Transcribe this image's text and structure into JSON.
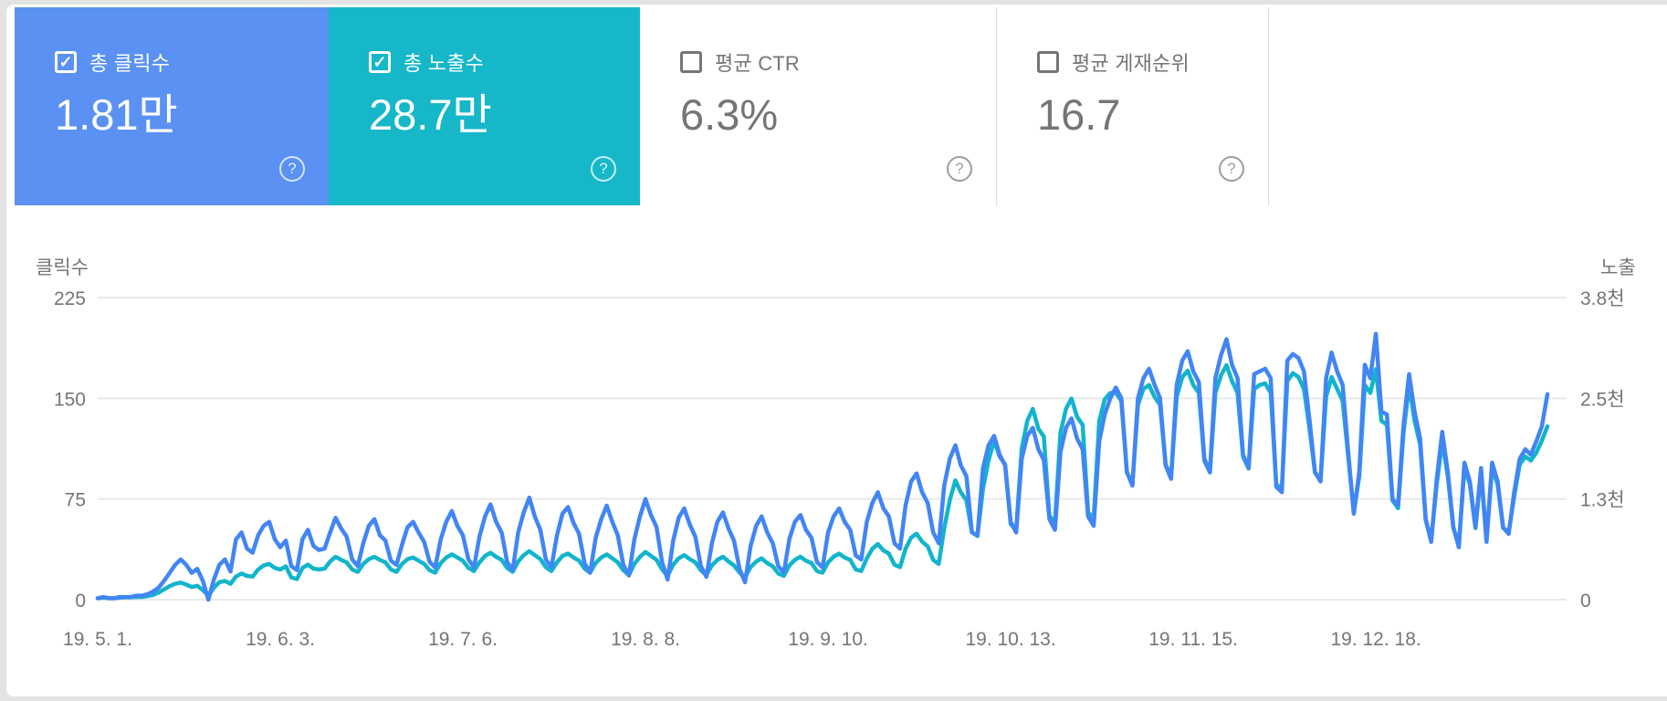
{
  "cards": [
    {
      "label": "총 클릭수",
      "value": "1.81만",
      "checked": true,
      "bg": "#5a91f2",
      "text": "#ffffff"
    },
    {
      "label": "총 노출수",
      "value": "28.7만",
      "checked": true,
      "bg": "#16b7c9",
      "text": "#ffffff"
    },
    {
      "label": "평균 CTR",
      "value": "6.3%",
      "checked": false,
      "bg": "#ffffff",
      "text": "#757575"
    },
    {
      "label": "평균 게재순위",
      "value": "16.7",
      "checked": false,
      "bg": "#ffffff",
      "text": "#757575"
    }
  ],
  "help_icon": "?",
  "chart_data": {
    "type": "line",
    "grid": true,
    "legend": "none",
    "left_axis": {
      "label": "클릭수",
      "max": 225,
      "ticks": [
        0,
        75,
        150,
        225
      ]
    },
    "right_axis": {
      "label": "노출",
      "max": 3800,
      "ticks": [
        "0",
        "1.3천",
        "2.5천",
        "3.8천"
      ],
      "tick_values": [
        0,
        1267,
        2533,
        3800
      ]
    },
    "x_tick_labels": [
      "19. 5. 1.",
      "19. 6. 3.",
      "19. 7. 6.",
      "19. 8. 8.",
      "19. 9. 10.",
      "19. 10. 13.",
      "19. 11. 15.",
      "19. 12. 18."
    ],
    "x_tick_day_indices": [
      0,
      33,
      66,
      99,
      132,
      165,
      198,
      231
    ],
    "series": [
      {
        "name": "클릭수",
        "axis": "left",
        "color": "#4285f4",
        "values": [
          1,
          2,
          1,
          1,
          2,
          2,
          2,
          3,
          3,
          4,
          6,
          9,
          14,
          20,
          26,
          30,
          26,
          20,
          23,
          14,
          0,
          15,
          26,
          30,
          21,
          45,
          50,
          38,
          35,
          48,
          55,
          58,
          45,
          39,
          44,
          25,
          22,
          45,
          52,
          40,
          37,
          38,
          50,
          61,
          53,
          47,
          30,
          25,
          42,
          55,
          60,
          48,
          44,
          29,
          26,
          41,
          54,
          58,
          50,
          43,
          28,
          24,
          45,
          58,
          66,
          55,
          48,
          30,
          24,
          47,
          62,
          71,
          58,
          50,
          28,
          22,
          50,
          65,
          76,
          62,
          52,
          30,
          24,
          48,
          64,
          69,
          57,
          49,
          27,
          20,
          46,
          60,
          70,
          58,
          48,
          26,
          18,
          45,
          62,
          75,
          63,
          54,
          28,
          15,
          44,
          61,
          68,
          56,
          47,
          25,
          17,
          42,
          58,
          65,
          53,
          44,
          23,
          13,
          40,
          55,
          62,
          50,
          42,
          25,
          20,
          45,
          58,
          63,
          52,
          46,
          28,
          24,
          50,
          62,
          68,
          58,
          52,
          33,
          30,
          58,
          72,
          80,
          68,
          62,
          42,
          38,
          70,
          88,
          94,
          80,
          72,
          50,
          42,
          85,
          105,
          115,
          100,
          92,
          50,
          48,
          98,
          115,
          122,
          108,
          100,
          58,
          50,
          105,
          122,
          128,
          112,
          104,
          60,
          52,
          110,
          128,
          135,
          120,
          112,
          62,
          55,
          118,
          138,
          150,
          158,
          150,
          95,
          85,
          150,
          165,
          172,
          160,
          150,
          100,
          90,
          160,
          178,
          185,
          170,
          162,
          105,
          95,
          165,
          182,
          194,
          175,
          165,
          108,
          98,
          168,
          170,
          172,
          165,
          84,
          80,
          178,
          183,
          180,
          170,
          134,
          95,
          88,
          165,
          184,
          170,
          160,
          110,
          64,
          95,
          175,
          165,
          198,
          140,
          138,
          75,
          70,
          130,
          168,
          140,
          120,
          60,
          43,
          90,
          125,
          95,
          54,
          39,
          102,
          88,
          54,
          98,
          43,
          102,
          88,
          54,
          49,
          80,
          105,
          112,
          108,
          118,
          129,
          153
        ]
      },
      {
        "name": "노출수",
        "axis": "right",
        "color": "#12b5cb",
        "values": [
          20,
          25,
          20,
          20,
          25,
          30,
          30,
          35,
          35,
          45,
          60,
          90,
          130,
          170,
          200,
          215,
          190,
          160,
          175,
          120,
          50,
          150,
          220,
          235,
          200,
          290,
          330,
          300,
          290,
          380,
          430,
          450,
          400,
          380,
          420,
          280,
          260,
          400,
          440,
          390,
          380,
          390,
          480,
          540,
          500,
          470,
          380,
          350,
          450,
          510,
          540,
          500,
          470,
          380,
          350,
          450,
          510,
          530,
          490,
          450,
          370,
          340,
          460,
          530,
          570,
          530,
          490,
          400,
          360,
          470,
          550,
          590,
          540,
          500,
          400,
          350,
          480,
          560,
          610,
          560,
          510,
          410,
          360,
          470,
          550,
          580,
          530,
          490,
          390,
          340,
          460,
          530,
          570,
          520,
          470,
          370,
          310,
          450,
          540,
          600,
          550,
          500,
          380,
          300,
          440,
          520,
          560,
          510,
          470,
          370,
          310,
          430,
          500,
          540,
          480,
          430,
          340,
          280,
          410,
          480,
          520,
          460,
          420,
          330,
          300,
          430,
          500,
          540,
          490,
          460,
          360,
          340,
          470,
          540,
          580,
          530,
          500,
          380,
          360,
          520,
          640,
          700,
          620,
          580,
          440,
          410,
          640,
          780,
          830,
          730,
          670,
          500,
          450,
          900,
          1250,
          1500,
          1350,
          1250,
          850,
          800,
          1400,
          1750,
          2000,
          1800,
          1700,
          950,
          880,
          1900,
          2250,
          2400,
          2150,
          2050,
          1050,
          980,
          2100,
          2400,
          2530,
          2300,
          2200,
          1100,
          1020,
          2250,
          2520,
          2600,
          2600,
          2500,
          1600,
          1450,
          2450,
          2650,
          2700,
          2550,
          2450,
          1700,
          1550,
          2550,
          2800,
          2880,
          2700,
          2600,
          1750,
          1600,
          2600,
          2820,
          2950,
          2750,
          2600,
          1800,
          1650,
          2650,
          2700,
          2720,
          2600,
          1450,
          1400,
          2750,
          2850,
          2800,
          2650,
          2150,
          1600,
          1500,
          2550,
          2800,
          2650,
          2500,
          1800,
          1100,
          1550,
          2700,
          2600,
          2900,
          2250,
          2200,
          1250,
          1150,
          2100,
          2700,
          2250,
          1950,
          1000,
          750,
          1450,
          2000,
          1550,
          900,
          700,
          1650,
          1450,
          900,
          1600,
          750,
          1650,
          1450,
          900,
          850,
          1300,
          1700,
          1800,
          1750,
          1850,
          2000,
          2180
        ]
      }
    ]
  }
}
